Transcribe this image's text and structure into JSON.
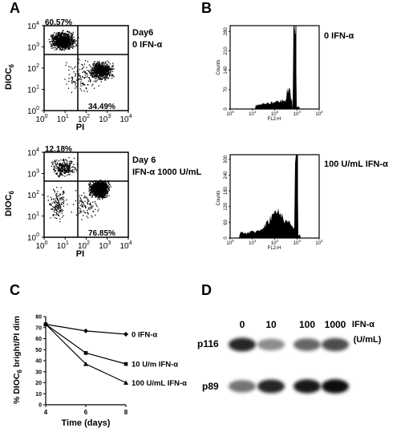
{
  "panels": {
    "A": {
      "label": "A",
      "top": {
        "title_line1": "Day6",
        "title_line2": "0 IFN-α",
        "quadrant_upper_left_pct": "60.57%",
        "quadrant_lower_right_pct": "34.49%",
        "xlabel": "PI",
        "ylabel_main": "DIOC",
        "ylabel_sub": "6"
      },
      "bottom": {
        "title_line1": "Day 6",
        "title_line2": "IFN-α 1000 U/mL",
        "quadrant_upper_left_pct": "12.18%",
        "quadrant_lower_right_pct": "76.85%",
        "xlabel": "PI",
        "ylabel_main": "DIOC",
        "ylabel_sub": "6"
      },
      "ticks": [
        "10",
        "10",
        "10",
        "10",
        "10"
      ],
      "tick_exponents": [
        "0",
        "1",
        "2",
        "3",
        "4"
      ]
    },
    "B": {
      "label": "B",
      "top": {
        "legend": "0 IFN-α",
        "ylabel": "Counts",
        "xlabel": "FL2-H",
        "yticks": [
          "0",
          "70",
          "140",
          "210",
          "280"
        ]
      },
      "bottom": {
        "legend": "100 U/mL IFN-α",
        "ylabel": "Counts",
        "xlabel": "FL2-H",
        "yticks": [
          "0",
          "60",
          "120",
          "180",
          "240",
          "300"
        ]
      },
      "tick_exponents": [
        "0",
        "1",
        "2",
        "3",
        "4"
      ]
    },
    "C": {
      "label": "C"
    },
    "D": {
      "label": "D",
      "lanes": [
        "0",
        "10",
        "100",
        "1000"
      ],
      "header_line1": "IFN-α",
      "header_line2": "(U/mL)",
      "rows": [
        "p116",
        "p89"
      ],
      "p116_intensity": [
        0.85,
        0.45,
        0.6,
        0.7
      ],
      "p89_intensity": [
        0.55,
        0.85,
        0.9,
        0.95
      ]
    }
  },
  "chart_data": {
    "type": "line",
    "x": [
      4,
      6,
      8
    ],
    "xlabel": "Time (days)",
    "ylabel_main": "% DIOC",
    "ylabel_sub": "6",
    "ylabel_rest": " bright/PI dim",
    "xlim": [
      4,
      8
    ],
    "ylim": [
      0,
      80
    ],
    "xticks": [
      "4",
      "6",
      "8"
    ],
    "yticks": [
      "0",
      "10",
      "20",
      "30",
      "40",
      "50",
      "60",
      "70",
      "80"
    ],
    "grid": false,
    "series": [
      {
        "name": "0 IFN-α",
        "values": [
          73,
          67,
          64
        ]
      },
      {
        "name": "10 U/m IFN-α",
        "values": [
          73,
          47,
          37
        ]
      },
      {
        "name": "100 U/mL IFN-α",
        "values": [
          73,
          37,
          20
        ]
      }
    ]
  }
}
